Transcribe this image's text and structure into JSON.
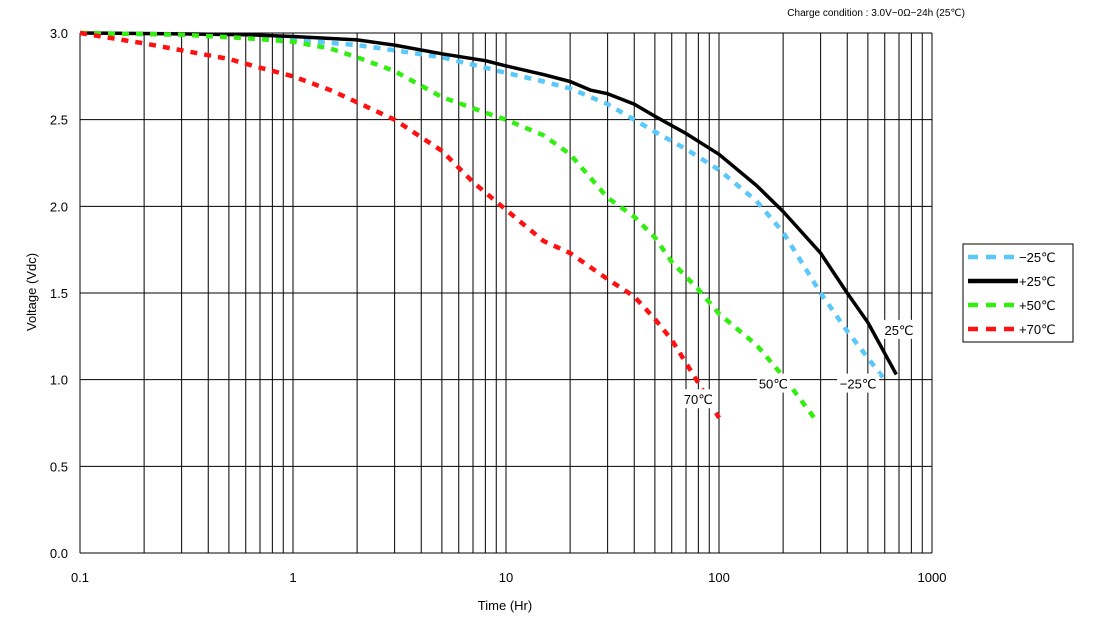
{
  "charge_condition": "Charge condition : 3.0V−0Ω−24h (25℃)",
  "chart_data": {
    "type": "line",
    "xlabel": "Time (Hr)",
    "ylabel": "Voltage (Vdc)",
    "xscale": "log",
    "xlim": [
      0.1,
      1000
    ],
    "ylim": [
      0.0,
      3.0
    ],
    "grid": true,
    "legend_position": "right",
    "x_tick_labels": [
      "0.1",
      "1",
      "10",
      "100",
      "1000"
    ],
    "y_tick_labels": [
      "0.0",
      "0.5",
      "1.0",
      "1.5",
      "2.0",
      "2.5",
      "3.0"
    ],
    "series": [
      {
        "name": "−25℃",
        "color": "#5ac8fa",
        "style": "dashed",
        "x": [
          0.1,
          0.3,
          0.6,
          1,
          2,
          3,
          5,
          8,
          10,
          15,
          20,
          30,
          40,
          50,
          70,
          100,
          150,
          200,
          300,
          400,
          600
        ],
        "y": [
          3.0,
          2.99,
          2.98,
          2.96,
          2.93,
          2.9,
          2.86,
          2.8,
          2.77,
          2.72,
          2.68,
          2.59,
          2.5,
          2.43,
          2.33,
          2.21,
          2.03,
          1.85,
          1.5,
          1.28,
          1.0
        ]
      },
      {
        "name": "+25℃",
        "color": "#000000",
        "style": "solid",
        "x": [
          0.1,
          0.3,
          0.6,
          1,
          2,
          3,
          5,
          8,
          10,
          15,
          20,
          25,
          30,
          40,
          50,
          70,
          100,
          150,
          200,
          300,
          400,
          500,
          680
        ],
        "y": [
          3.0,
          2.995,
          2.99,
          2.98,
          2.96,
          2.93,
          2.88,
          2.84,
          2.81,
          2.76,
          2.72,
          2.67,
          2.65,
          2.59,
          2.52,
          2.42,
          2.3,
          2.12,
          1.97,
          1.73,
          1.5,
          1.33,
          1.03
        ]
      },
      {
        "name": "+50℃",
        "color": "#33ee11",
        "style": "dashed",
        "x": [
          0.1,
          0.3,
          0.6,
          1,
          1.5,
          2,
          3,
          5,
          8,
          10,
          15,
          20,
          30,
          40,
          50,
          60,
          80,
          100,
          150,
          200,
          280
        ],
        "y": [
          3.0,
          2.99,
          2.97,
          2.95,
          2.91,
          2.86,
          2.78,
          2.63,
          2.54,
          2.5,
          2.41,
          2.3,
          2.05,
          1.94,
          1.82,
          1.68,
          1.52,
          1.38,
          1.2,
          1.02,
          0.78
        ]
      },
      {
        "name": "+70℃",
        "color": "#ff1111",
        "style": "dashed",
        "x": [
          0.1,
          0.2,
          0.3,
          0.5,
          0.7,
          1,
          1.5,
          2,
          3,
          5,
          7,
          10,
          15,
          20,
          30,
          40,
          50,
          60,
          80,
          100
        ],
        "y": [
          3.0,
          2.94,
          2.9,
          2.85,
          2.8,
          2.75,
          2.67,
          2.6,
          2.5,
          2.32,
          2.14,
          1.98,
          1.8,
          1.73,
          1.58,
          1.48,
          1.35,
          1.23,
          0.98,
          0.78
        ]
      }
    ],
    "annotations": [
      {
        "text": "25℃",
        "x": 700,
        "y": 1.27
      },
      {
        "text": "−25℃",
        "x": 450,
        "y": 0.96
      },
      {
        "text": "50℃",
        "x": 180,
        "y": 0.96
      },
      {
        "text": "70℃",
        "x": 80,
        "y": 0.87
      }
    ]
  }
}
